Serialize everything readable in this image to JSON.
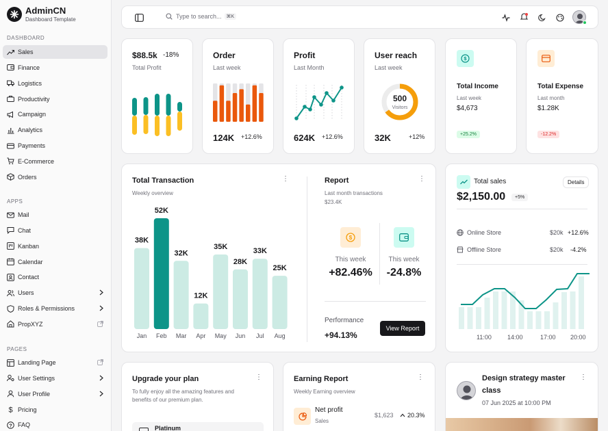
{
  "brand": {
    "title": "AdminCN",
    "subtitle": "Dashboard Template"
  },
  "sidebar": {
    "sections": [
      {
        "label": "DASHBOARD"
      },
      {
        "label": "APPS"
      },
      {
        "label": "PAGES"
      }
    ],
    "dashboard_items": [
      {
        "label": "Sales",
        "icon": "trending-up-icon",
        "active": true
      },
      {
        "label": "Finance",
        "icon": "wallet-icon"
      },
      {
        "label": "Logistics",
        "icon": "truck-icon"
      },
      {
        "label": "Productivity",
        "icon": "briefcase-icon"
      },
      {
        "label": "Campaign",
        "icon": "megaphone-icon"
      },
      {
        "label": "Analytics",
        "icon": "bar-chart-icon"
      },
      {
        "label": "Payments",
        "icon": "credit-card-icon"
      },
      {
        "label": "E-Commerce",
        "icon": "cart-icon"
      },
      {
        "label": "Orders",
        "icon": "package-icon"
      }
    ],
    "app_items": [
      {
        "label": "Mail",
        "icon": "mail-icon"
      },
      {
        "label": "Chat",
        "icon": "chat-icon"
      },
      {
        "label": "Kanban",
        "icon": "kanban-icon"
      },
      {
        "label": "Calendar",
        "icon": "calendar-icon"
      },
      {
        "label": "Contact",
        "icon": "contact-icon"
      },
      {
        "label": "Users",
        "icon": "users-icon"
      },
      {
        "label": "Roles & Permissions",
        "icon": "shield-icon"
      },
      {
        "label": "PropXYZ",
        "icon": "home-icon"
      }
    ],
    "page_items": [
      {
        "label": "Landing Page",
        "icon": "layout-icon"
      },
      {
        "label": "User Settings",
        "icon": "user-cog-icon"
      },
      {
        "label": "User Profile",
        "icon": "user-icon"
      },
      {
        "label": "Pricing",
        "icon": "dollar-icon"
      },
      {
        "label": "FAQ",
        "icon": "help-icon"
      }
    ]
  },
  "topbar": {
    "search_placeholder": "Type to search...",
    "shortcut": "⌘K"
  },
  "stats": {
    "profit": {
      "value": "$88.5k",
      "change": "-18%",
      "label": "Total Profit"
    },
    "order": {
      "title": "Order",
      "period": "Last week",
      "value": "124K",
      "change": "+12.6%"
    },
    "profit2": {
      "title": "Profit",
      "period": "Last Month",
      "value": "624K",
      "change": "+12.6%"
    },
    "reach": {
      "title": "User reach",
      "period": "Last week",
      "center_value": "500",
      "center_label": "Visitors",
      "value": "32K",
      "change": "+12%",
      "progress": 0.65
    },
    "income": {
      "title": "Total Income",
      "period": "Last week",
      "value": "$4,673",
      "badge": "+25.2%"
    },
    "expense": {
      "title": "Total Expense",
      "period": "Last month",
      "value": "$1.28K",
      "badge": "-12.2%"
    }
  },
  "transaction": {
    "title": "Total Transaction",
    "subtitle": "Weekly overview",
    "chart_data": {
      "type": "bar",
      "categories": [
        "Jan",
        "Feb",
        "Mar",
        "Apr",
        "May",
        "Jun",
        "Jul",
        "Aug"
      ],
      "values": [
        38,
        52,
        32,
        12,
        35,
        28,
        33,
        25
      ],
      "labels": [
        "38K",
        "52K",
        "32K",
        "12K",
        "35K",
        "28K",
        "33K",
        "25K"
      ],
      "highlight": "Feb",
      "ylim": [
        0,
        52
      ]
    }
  },
  "report": {
    "title": "Report",
    "subtitle": "Last month transactions",
    "amount": "$23.4K",
    "left": {
      "label": "This week",
      "value": "+82.46%"
    },
    "right": {
      "label": "This week",
      "value": "-24.8%"
    },
    "performance_label": "Performance",
    "performance_value": "+94.13%",
    "button": "View Report"
  },
  "total_sales": {
    "title": "Total sales",
    "details_button": "Details",
    "value": "$2,150.00",
    "badge": "+5%",
    "rows": [
      {
        "label": "Online Store",
        "amount": "$20k",
        "change": "+12.6%"
      },
      {
        "label": "Offline Store",
        "amount": "$20k",
        "change": "-4.2%"
      }
    ],
    "x_labels": [
      "11:00",
      "14:00",
      "17:00",
      "20:00"
    ]
  },
  "plan": {
    "title": "Upgrade your plan",
    "text_line1": "To fully enjoy all the amazing features and",
    "text_line2": "benefits of our premium plan.",
    "option": "Platinum"
  },
  "earning": {
    "title": "Earning Report",
    "subtitle": "Weekly Earning overview",
    "item_title": "Net profit",
    "item_sub": "Sales",
    "item_amount": "$1,623",
    "item_change": "20.3%"
  },
  "event": {
    "title_line1": "Design strategy master",
    "title_line2": "class",
    "date": "07 Jun 2025 at 10:00 PM"
  },
  "colors": {
    "teal": "#0d9488",
    "amber": "#fbbf24",
    "orange": "#ea580c",
    "teal_light": "#ccebe4"
  }
}
